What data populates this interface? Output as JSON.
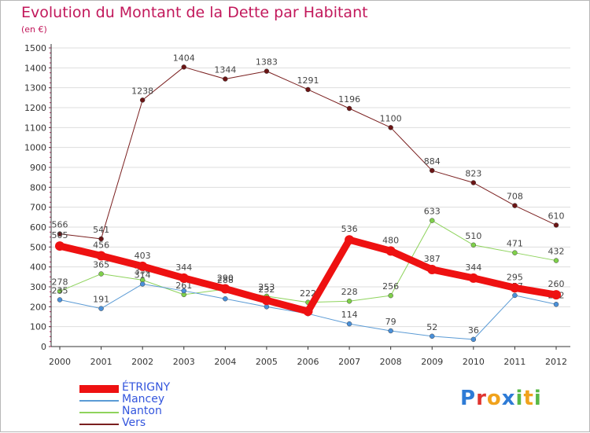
{
  "header": {
    "title": "Evolution du Montant de la Dette par Habitant",
    "unit": "(en €)"
  },
  "colors": {
    "title": "#c2185b",
    "axis": "#333333",
    "grid": "#dddddd",
    "plot_background": "#ffffff"
  },
  "brand": {
    "letters": [
      {
        "ch": "P",
        "color": "#2e7bd6"
      },
      {
        "ch": "r",
        "color": "#e0342f"
      },
      {
        "ch": "o",
        "color": "#f0a21c"
      },
      {
        "ch": "x",
        "color": "#2e7bd6"
      },
      {
        "ch": "i",
        "color": "#58b947"
      },
      {
        "ch": "t",
        "color": "#f0a21c"
      },
      {
        "ch": "i",
        "color": "#58b947"
      }
    ]
  },
  "chart_data": {
    "type": "line",
    "title": "Evolution du Montant de la Dette par Habitant",
    "subtitle": "(en €)",
    "xlabel": "",
    "ylabel": "",
    "categories": [
      "2000",
      "2001",
      "2002",
      "2003",
      "2004",
      "2005",
      "2006",
      "2007",
      "2008",
      "2009",
      "2010",
      "2011",
      "2012"
    ],
    "ylim": [
      0,
      1500
    ],
    "yticks": [
      0,
      100,
      200,
      300,
      400,
      500,
      600,
      700,
      800,
      900,
      1000,
      1100,
      1200,
      1300,
      1400,
      1500
    ],
    "grid": true,
    "legend_position": "bottom-left",
    "series": [
      {
        "name": "Vers",
        "color": "#7a1f1f",
        "line_width": 1,
        "marker_color": "#6b1515",
        "values": [
          566,
          541,
          1238,
          1404,
          1344,
          1383,
          1291,
          1196,
          1100,
          884,
          823,
          708,
          610
        ],
        "labels": [
          "566",
          "541",
          "1238",
          "1404",
          "1344",
          "1383",
          "1291",
          "1196",
          "1100",
          "884",
          "823",
          "708",
          "610"
        ],
        "label_position": "above"
      },
      {
        "name": "Nanton",
        "color": "#8ed35c",
        "line_width": 1,
        "marker_color": "#7fd04a",
        "values": [
          278,
          365,
          334,
          261,
          288,
          253,
          222,
          228,
          256,
          633,
          510,
          471,
          432
        ],
        "labels": [
          "278",
          "365",
          "334",
          "261",
          "288",
          "253",
          "222",
          "228",
          "256",
          "633",
          "510",
          "471",
          "432"
        ],
        "label_position": "above"
      },
      {
        "name": "Mancey",
        "color": "#5b9bd5",
        "line_width": 1,
        "marker_color": "#4a90d9",
        "values": [
          235,
          191,
          314,
          280,
          240,
          200,
          165,
          114,
          79,
          52,
          36,
          257,
          212
        ],
        "labels": [
          "235",
          "191",
          "314",
          "",
          "",
          "",
          "",
          "114",
          "79",
          "52",
          "36",
          "257",
          "212"
        ],
        "label_position": "above"
      },
      {
        "name": "ÉTRIGNY",
        "color": "#ee1111",
        "line_width": 9,
        "marker_color": "#ee1111",
        "values": [
          505,
          456,
          403,
          344,
          290,
          232,
          177,
          536,
          480,
          387,
          344,
          295,
          260
        ],
        "labels": [
          "505",
          "456",
          "403",
          "344",
          "290",
          "232",
          "",
          "536",
          "480",
          "387",
          "344",
          "295",
          "260"
        ],
        "label_position": "above"
      }
    ],
    "legend_order": [
      "ÉTRIGNY",
      "Mancey",
      "Nanton",
      "Vers"
    ]
  }
}
